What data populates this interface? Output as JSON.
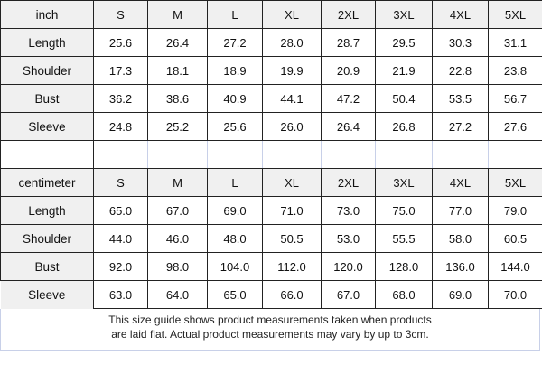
{
  "sizes": [
    "S",
    "M",
    "L",
    "XL",
    "2XL",
    "3XL",
    "4XL",
    "5XL"
  ],
  "inch": {
    "unit": "inch",
    "rows": [
      {
        "label": "Length",
        "values": [
          "25.6",
          "26.4",
          "27.2",
          "28.0",
          "28.7",
          "29.5",
          "30.3",
          "31.1"
        ]
      },
      {
        "label": "Shoulder",
        "values": [
          "17.3",
          "18.1",
          "18.9",
          "19.9",
          "20.9",
          "21.9",
          "22.8",
          "23.8"
        ]
      },
      {
        "label": "Bust",
        "values": [
          "36.2",
          "38.6",
          "40.9",
          "44.1",
          "47.2",
          "50.4",
          "53.5",
          "56.7"
        ]
      },
      {
        "label": "Sleeve",
        "values": [
          "24.8",
          "25.2",
          "25.6",
          "26.0",
          "26.4",
          "26.8",
          "27.2",
          "27.6"
        ]
      }
    ]
  },
  "centimeter": {
    "unit": "centimeter",
    "rows": [
      {
        "label": "Length",
        "values": [
          "65.0",
          "67.0",
          "69.0",
          "71.0",
          "73.0",
          "75.0",
          "77.0",
          "79.0"
        ]
      },
      {
        "label": "Shoulder",
        "values": [
          "44.0",
          "46.0",
          "48.0",
          "50.5",
          "53.0",
          "55.5",
          "58.0",
          "60.5"
        ]
      },
      {
        "label": "Bust",
        "values": [
          "92.0",
          "98.0",
          "104.0",
          "112.0",
          "120.0",
          "128.0",
          "136.0",
          "144.0"
        ]
      },
      {
        "label": "Sleeve",
        "values": [
          "63.0",
          "64.0",
          "65.0",
          "66.0",
          "67.0",
          "68.0",
          "69.0",
          "70.0"
        ]
      }
    ]
  },
  "note": {
    "line1": "This size guide shows product measurements taken when products",
    "line2": "are laid flat. Actual product measurements may vary by up to 3cm."
  }
}
